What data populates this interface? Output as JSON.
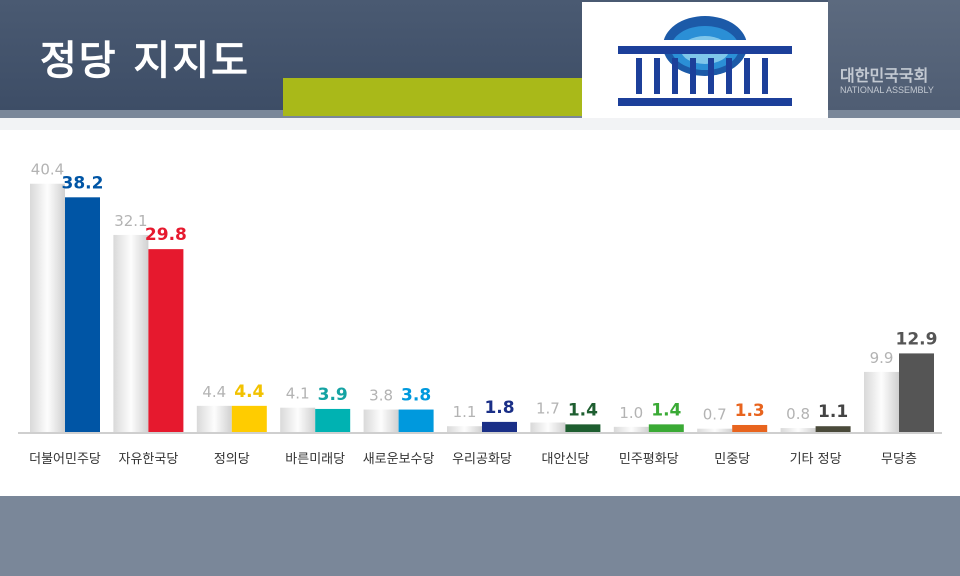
{
  "header": {
    "title": "정당 지지도",
    "org_name": "대한민국국회",
    "org_sub": "NATIONAL ASSEMBLY"
  },
  "icons": [
    "national-assembly-logo"
  ],
  "chart_data": {
    "type": "bar",
    "title": "정당 지지도",
    "xlabel": "",
    "ylabel": "",
    "ylim": [
      0,
      45
    ],
    "grid": false,
    "categories": [
      "더불어민주당",
      "자유한국당",
      "정의당",
      "바른미래당",
      "새로운보수당",
      "우리공화당",
      "대안신당",
      "민주평화당",
      "민중당",
      "기타 정당",
      "무당층"
    ],
    "series": [
      {
        "name": "",
        "color": "#cccccc",
        "values": [
          40.4,
          32.1,
          4.4,
          4.1,
          3.8,
          1.1,
          1.7,
          1.0,
          0.7,
          0.8,
          9.9
        ],
        "labels": [
          "40.4",
          "32.1",
          "4.4",
          "4.1",
          "3.8",
          "1.1",
          "1.7",
          "1.0",
          "0.7",
          "0.8",
          "9.9"
        ]
      },
      {
        "name": "",
        "colors": [
          "#0055a5",
          "#e6192e",
          "#ffcc00",
          "#00b2b2",
          "#0099dd",
          "#1a2f87",
          "#1e5e30",
          "#3aaa35",
          "#e8641e",
          "#4a4a3a",
          "#555555"
        ],
        "label_colors": [
          "#0055a5",
          "#e6192e",
          "#f2c200",
          "#14a3a3",
          "#0099dd",
          "#1a2f87",
          "#1e5e30",
          "#3aaa35",
          "#e8641e",
          "#444444",
          "#555555"
        ],
        "values": [
          38.2,
          29.8,
          4.4,
          3.9,
          3.8,
          1.8,
          1.4,
          1.4,
          1.3,
          1.1,
          12.9
        ],
        "labels": [
          "38.2",
          "29.8",
          "4.4",
          "3.9",
          "3.8",
          "1.8",
          "1.4",
          "1.4",
          "1.3",
          "1.1",
          "12.9"
        ]
      }
    ]
  }
}
